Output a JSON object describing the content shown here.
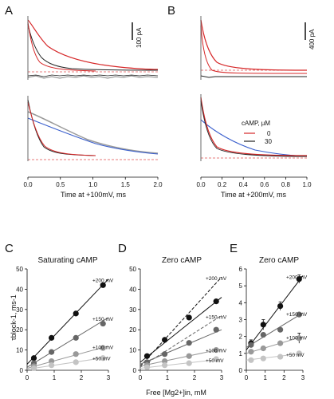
{
  "panel_letters": {
    "A": "A",
    "B": "B",
    "C": "C",
    "D": "D",
    "E": "E"
  },
  "scale_bars": {
    "A": "100 pA",
    "B": "400 pA"
  },
  "legend": {
    "title": "cAMP, µM",
    "entries": [
      "0",
      "30"
    ]
  },
  "colors": {
    "red_trace": "#d62728",
    "black_trace": "#222222",
    "blue_fit": "#3a5fcd",
    "grey_trace": "#9a9a9a",
    "dashed_red": "#e05050"
  },
  "chart_data": [
    {
      "panel": "A",
      "type": "line",
      "xlabel": "Time at +100mV, ms",
      "xlim": [
        0.0,
        2.0
      ],
      "xticks": [
        "0.0",
        "0.5",
        "1.0",
        "1.5",
        "2.0"
      ]
    },
    {
      "panel": "B",
      "type": "line",
      "xlabel": "Time at +200mV, ms",
      "xlim": [
        0.0,
        1.0
      ],
      "xticks": [
        "0.0",
        "0.2",
        "0.4",
        "0.6",
        "0.8",
        "1.0"
      ]
    },
    {
      "panel": "C",
      "type": "scatter",
      "title": "Saturating cAMP",
      "ylabel": "τblock-1, ms-1",
      "xlabel": "Free [Mg2+]in, mM",
      "xlim": [
        0,
        3
      ],
      "ylim": [
        0,
        50
      ],
      "xticks": [
        "0",
        "1",
        "2",
        "3"
      ],
      "yticks": [
        "0",
        "10",
        "20",
        "30",
        "40",
        "50"
      ],
      "series": [
        {
          "name": "+200 mV",
          "x": [
            0.25,
            0.9,
            1.8,
            2.8
          ],
          "y": [
            6,
            16,
            28,
            42
          ],
          "line": [
            [
              0,
              3
            ],
            [
              3,
              45
            ]
          ]
        },
        {
          "name": "+150 mV",
          "x": [
            0.25,
            0.9,
            1.8,
            2.8
          ],
          "y": [
            3.5,
            9,
            16,
            23
          ],
          "line": [
            [
              0,
              1.5
            ],
            [
              3,
              26
            ]
          ]
        },
        {
          "name": "+100 mV",
          "x": [
            0.25,
            0.9,
            1.8,
            2.8
          ],
          "y": [
            2,
            4.5,
            8,
            11
          ],
          "line": [
            [
              0,
              1
            ],
            [
              3,
              12
            ]
          ]
        },
        {
          "name": "+50 mV",
          "x": [
            0.25,
            0.9,
            1.8,
            2.8
          ],
          "y": [
            1,
            2.5,
            4,
            6
          ],
          "line": [
            [
              0,
              0.5
            ],
            [
              3,
              6.5
            ]
          ]
        }
      ]
    },
    {
      "panel": "D",
      "type": "scatter",
      "title": "Zero cAMP",
      "xlim": [
        0,
        3
      ],
      "ylim": [
        0,
        50
      ],
      "xticks": [
        "0",
        "1",
        "2",
        "3"
      ],
      "yticks": [
        "0",
        "10",
        "20",
        "30",
        "40",
        "50"
      ],
      "series": [
        {
          "name": "+200 mV",
          "x": [
            0.25,
            0.9,
            1.8,
            2.8
          ],
          "y": [
            7,
            15,
            26,
            34
          ],
          "line": [
            [
              0,
              4
            ],
            [
              3,
              36
            ]
          ],
          "dashed": [
            [
              0,
              2
            ],
            [
              3,
              46
            ]
          ]
        },
        {
          "name": "+150 mV",
          "x": [
            0.25,
            0.9,
            1.8,
            2.8
          ],
          "y": [
            4,
            8,
            13.5,
            20
          ],
          "line": [
            [
              0,
              3
            ],
            [
              3,
              20
            ]
          ],
          "dashed": [
            [
              0,
              1.5
            ],
            [
              3,
              27
            ]
          ]
        },
        {
          "name": "+100 mV",
          "x": [
            0.25,
            0.9,
            1.8,
            2.8
          ],
          "y": [
            2.5,
            4.5,
            7,
            10
          ],
          "line": [
            [
              0,
              2
            ],
            [
              3,
              10.5
            ]
          ]
        },
        {
          "name": "+50 mV",
          "x": [
            0.25,
            0.9,
            1.8,
            2.8
          ],
          "y": [
            1.5,
            2.5,
            3.5,
            5.5
          ],
          "line": [
            [
              0,
              1
            ],
            [
              3,
              5.5
            ]
          ]
        }
      ]
    },
    {
      "panel": "E",
      "type": "scatter",
      "title": "Zero cAMP",
      "xlim": [
        0,
        3
      ],
      "ylim": [
        0,
        6
      ],
      "xticks": [
        "0",
        "1",
        "2",
        "3"
      ],
      "yticks": [
        "0",
        "1",
        "2",
        "3",
        "4",
        "5",
        "6"
      ],
      "series": [
        {
          "name": "+200 mV",
          "x": [
            0.25,
            0.9,
            1.8,
            2.8
          ],
          "y": [
            1.6,
            2.7,
            3.8,
            5.4
          ],
          "err": [
            0.2,
            0.3,
            0.25,
            0.25
          ],
          "line": [
            [
              0,
              1.2
            ],
            [
              3,
              5.6
            ]
          ]
        },
        {
          "name": "+150 mV",
          "x": [
            0.25,
            0.9,
            1.8,
            2.8
          ],
          "y": [
            1.5,
            2.1,
            2.4,
            3.3
          ],
          "err": [
            0,
            0,
            0,
            0
          ],
          "line": [
            [
              0,
              1.35
            ],
            [
              3,
              3.4
            ]
          ]
        },
        {
          "name": "+100 mV",
          "x": [
            0.25,
            0.9,
            1.8,
            2.8
          ],
          "y": [
            1.1,
            1.3,
            1.6,
            1.9
          ],
          "err": [
            0,
            0,
            0,
            0.3
          ],
          "line": [
            [
              0,
              1.0
            ],
            [
              3,
              2.0
            ]
          ]
        },
        {
          "name": "+50 mV",
          "x": [
            0.25,
            0.9,
            1.8,
            2.8
          ],
          "y": [
            0.6,
            0.7,
            0.8,
            1.0
          ],
          "err": [
            0,
            0,
            0,
            0
          ],
          "line": [
            [
              0,
              0.6
            ],
            [
              3,
              1.0
            ]
          ]
        }
      ]
    }
  ]
}
